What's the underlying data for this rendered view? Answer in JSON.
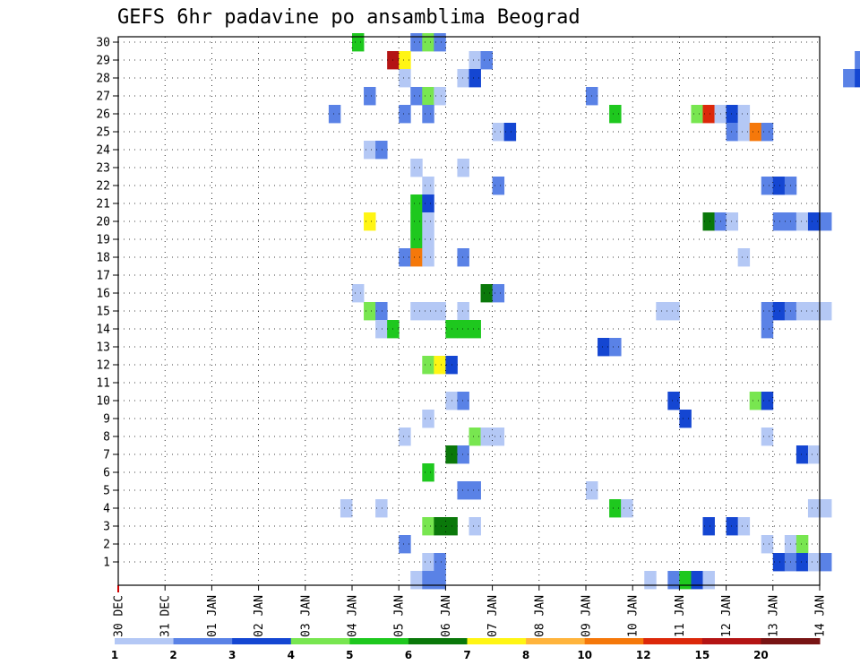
{
  "chart_data": {
    "type": "heatmap",
    "title": "GEFS 6hr padavine po ansamblima Beograd",
    "y_ticks": [
      "1",
      "2",
      "3",
      "4",
      "5",
      "6",
      "7",
      "8",
      "9",
      "10",
      "11",
      "12",
      "13",
      "14",
      "15",
      "16",
      "17",
      "18",
      "19",
      "20",
      "21",
      "22",
      "23",
      "24",
      "25",
      "26",
      "27",
      "28",
      "29",
      "30"
    ],
    "x_ticks": [
      "30 DEC",
      "31 DEC",
      "01 JAN",
      "02 JAN",
      "03 JAN",
      "04 JAN",
      "05 JAN",
      "06 JAN",
      "07 JAN",
      "08 JAN",
      "09 JAN",
      "10 JAN",
      "11 JAN",
      "12 JAN",
      "13 JAN",
      "14 JAN"
    ],
    "ylim": [
      0,
      30
    ],
    "grid": true,
    "colorbar_labels": [
      "1",
      "2",
      "3",
      "4",
      "5",
      "6",
      "7",
      "8",
      "10",
      "12",
      "15",
      "20"
    ],
    "colorbar_colors": [
      "#b4c8f5",
      "#5a82e6",
      "#1446d2",
      "#78e650",
      "#1ec81e",
      "#0a780a",
      "#fff514",
      "#ffb43c",
      "#f5780a",
      "#dc280a",
      "#b41414",
      "#781414"
    ],
    "cells": [
      {
        "member": 30,
        "x": 5.0,
        "level": 5
      },
      {
        "member": 30,
        "x": 6.25,
        "level": 2
      },
      {
        "member": 30,
        "x": 6.5,
        "level": 4
      },
      {
        "member": 30,
        "x": 6.75,
        "level": 2
      },
      {
        "member": 29,
        "x": 5.75,
        "level": 11
      },
      {
        "member": 29,
        "x": 6.0,
        "level": 7
      },
      {
        "member": 29,
        "x": 7.5,
        "level": 1
      },
      {
        "member": 29,
        "x": 7.75,
        "level": 2
      },
      {
        "member": 29,
        "x": 15.75,
        "level": 2
      },
      {
        "member": 28,
        "x": 6.0,
        "level": 1
      },
      {
        "member": 28,
        "x": 7.25,
        "level": 1
      },
      {
        "member": 28,
        "x": 7.5,
        "level": 3
      },
      {
        "member": 28,
        "x": 15.5,
        "level": 2
      },
      {
        "member": 28,
        "x": 15.75,
        "level": 3
      },
      {
        "member": 27,
        "x": 5.25,
        "level": 2
      },
      {
        "member": 27,
        "x": 6.25,
        "level": 2
      },
      {
        "member": 27,
        "x": 6.5,
        "level": 4
      },
      {
        "member": 27,
        "x": 6.75,
        "level": 1
      },
      {
        "member": 27,
        "x": 10.0,
        "level": 2
      },
      {
        "member": 26,
        "x": 4.5,
        "level": 2
      },
      {
        "member": 26,
        "x": 6.0,
        "level": 2
      },
      {
        "member": 26,
        "x": 6.5,
        "level": 2
      },
      {
        "member": 26,
        "x": 10.5,
        "level": 5
      },
      {
        "member": 26,
        "x": 12.25,
        "level": 4
      },
      {
        "member": 26,
        "x": 12.5,
        "level": 10
      },
      {
        "member": 26,
        "x": 12.75,
        "level": 1
      },
      {
        "member": 26,
        "x": 13.0,
        "level": 3
      },
      {
        "member": 26,
        "x": 13.25,
        "level": 1
      },
      {
        "member": 25,
        "x": 8.0,
        "level": 1
      },
      {
        "member": 25,
        "x": 8.25,
        "level": 3
      },
      {
        "member": 25,
        "x": 13.0,
        "level": 2
      },
      {
        "member": 25,
        "x": 13.25,
        "level": 1
      },
      {
        "member": 25,
        "x": 13.5,
        "level": 9
      },
      {
        "member": 25,
        "x": 13.75,
        "level": 2
      },
      {
        "member": 24,
        "x": 5.25,
        "level": 1
      },
      {
        "member": 24,
        "x": 5.5,
        "level": 2
      },
      {
        "member": 23,
        "x": 6.25,
        "level": 1
      },
      {
        "member": 23,
        "x": 7.25,
        "level": 1
      },
      {
        "member": 22,
        "x": 6.5,
        "level": 1
      },
      {
        "member": 22,
        "x": 8.0,
        "level": 2
      },
      {
        "member": 22,
        "x": 13.75,
        "level": 2
      },
      {
        "member": 22,
        "x": 14.0,
        "level": 3
      },
      {
        "member": 22,
        "x": 14.25,
        "level": 2
      },
      {
        "member": 21,
        "x": 6.25,
        "level": 5
      },
      {
        "member": 21,
        "x": 6.5,
        "level": 3
      },
      {
        "member": 20,
        "x": 5.25,
        "level": 7
      },
      {
        "member": 20,
        "x": 6.25,
        "level": 5
      },
      {
        "member": 20,
        "x": 6.5,
        "level": 1
      },
      {
        "member": 20,
        "x": 12.5,
        "level": 6
      },
      {
        "member": 20,
        "x": 12.75,
        "level": 2
      },
      {
        "member": 20,
        "x": 13.0,
        "level": 1
      },
      {
        "member": 20,
        "x": 14.0,
        "level": 2
      },
      {
        "member": 20,
        "x": 14.25,
        "level": 2
      },
      {
        "member": 20,
        "x": 14.5,
        "level": 1
      },
      {
        "member": 20,
        "x": 14.75,
        "level": 3
      },
      {
        "member": 20,
        "x": 15.0,
        "level": 2
      },
      {
        "member": 19,
        "x": 6.25,
        "level": 5
      },
      {
        "member": 19,
        "x": 6.5,
        "level": 1
      },
      {
        "member": 18,
        "x": 6.0,
        "level": 2
      },
      {
        "member": 18,
        "x": 6.25,
        "level": 9
      },
      {
        "member": 18,
        "x": 6.5,
        "level": 1
      },
      {
        "member": 18,
        "x": 7.25,
        "level": 2
      },
      {
        "member": 18,
        "x": 13.25,
        "level": 1
      },
      {
        "member": 16,
        "x": 5.0,
        "level": 1
      },
      {
        "member": 16,
        "x": 7.75,
        "level": 6
      },
      {
        "member": 16,
        "x": 8.0,
        "level": 2
      },
      {
        "member": 15,
        "x": 5.25,
        "level": 4
      },
      {
        "member": 15,
        "x": 5.5,
        "level": 2
      },
      {
        "member": 15,
        "x": 6.25,
        "level": 1
      },
      {
        "member": 15,
        "x": 6.5,
        "level": 1
      },
      {
        "member": 15,
        "x": 6.75,
        "level": 1
      },
      {
        "member": 15,
        "x": 7.25,
        "level": 1
      },
      {
        "member": 15,
        "x": 11.5,
        "level": 1
      },
      {
        "member": 15,
        "x": 11.75,
        "level": 1
      },
      {
        "member": 15,
        "x": 13.75,
        "level": 2
      },
      {
        "member": 15,
        "x": 14.0,
        "level": 3
      },
      {
        "member": 15,
        "x": 14.25,
        "level": 2
      },
      {
        "member": 15,
        "x": 14.5,
        "level": 1
      },
      {
        "member": 15,
        "x": 14.75,
        "level": 1
      },
      {
        "member": 15,
        "x": 15.0,
        "level": 1
      },
      {
        "member": 14,
        "x": 5.5,
        "level": 1
      },
      {
        "member": 14,
        "x": 5.75,
        "level": 5
      },
      {
        "member": 14,
        "x": 7.0,
        "level": 5
      },
      {
        "member": 14,
        "x": 7.25,
        "level": 5
      },
      {
        "member": 14,
        "x": 7.5,
        "level": 5
      },
      {
        "member": 14,
        "x": 13.75,
        "level": 2
      },
      {
        "member": 13,
        "x": 10.25,
        "level": 3
      },
      {
        "member": 13,
        "x": 10.5,
        "level": 2
      },
      {
        "member": 12,
        "x": 6.5,
        "level": 4
      },
      {
        "member": 12,
        "x": 6.75,
        "level": 7
      },
      {
        "member": 12,
        "x": 7.0,
        "level": 3
      },
      {
        "member": 10,
        "x": 7.0,
        "level": 1
      },
      {
        "member": 10,
        "x": 7.25,
        "level": 2
      },
      {
        "member": 10,
        "x": 11.75,
        "level": 3
      },
      {
        "member": 10,
        "x": 13.5,
        "level": 4
      },
      {
        "member": 10,
        "x": 13.75,
        "level": 3
      },
      {
        "member": 9,
        "x": 6.5,
        "level": 1
      },
      {
        "member": 9,
        "x": 12.0,
        "level": 3
      },
      {
        "member": 8,
        "x": 6.0,
        "level": 1
      },
      {
        "member": 8,
        "x": 7.5,
        "level": 4
      },
      {
        "member": 8,
        "x": 7.75,
        "level": 1
      },
      {
        "member": 8,
        "x": 8.0,
        "level": 1
      },
      {
        "member": 8,
        "x": 13.75,
        "level": 1
      },
      {
        "member": 7,
        "x": 7.0,
        "level": 6
      },
      {
        "member": 7,
        "x": 7.25,
        "level": 2
      },
      {
        "member": 7,
        "x": 14.5,
        "level": 3
      },
      {
        "member": 7,
        "x": 14.75,
        "level": 1
      },
      {
        "member": 6,
        "x": 6.5,
        "level": 5
      },
      {
        "member": 5,
        "x": 7.25,
        "level": 2
      },
      {
        "member": 5,
        "x": 7.5,
        "level": 2
      },
      {
        "member": 5,
        "x": 10.0,
        "level": 1
      },
      {
        "member": 4,
        "x": 4.75,
        "level": 1
      },
      {
        "member": 4,
        "x": 5.5,
        "level": 1
      },
      {
        "member": 4,
        "x": 10.5,
        "level": 5
      },
      {
        "member": 4,
        "x": 10.75,
        "level": 1
      },
      {
        "member": 4,
        "x": 14.75,
        "level": 1
      },
      {
        "member": 4,
        "x": 15.0,
        "level": 1
      },
      {
        "member": 3,
        "x": 6.5,
        "level": 4
      },
      {
        "member": 3,
        "x": 6.75,
        "level": 6
      },
      {
        "member": 3,
        "x": 7.0,
        "level": 6
      },
      {
        "member": 3,
        "x": 7.5,
        "level": 1
      },
      {
        "member": 3,
        "x": 12.5,
        "level": 3
      },
      {
        "member": 3,
        "x": 13.0,
        "level": 3
      },
      {
        "member": 3,
        "x": 13.25,
        "level": 1
      },
      {
        "member": 2,
        "x": 6.0,
        "level": 2
      },
      {
        "member": 2,
        "x": 13.75,
        "level": 1
      },
      {
        "member": 2,
        "x": 14.25,
        "level": 1
      },
      {
        "member": 2,
        "x": 14.5,
        "level": 4
      },
      {
        "member": 1,
        "x": 6.5,
        "level": 1
      },
      {
        "member": 1,
        "x": 6.75,
        "level": 2
      },
      {
        "member": 1,
        "x": 14.0,
        "level": 3
      },
      {
        "member": 1,
        "x": 14.25,
        "level": 2
      },
      {
        "member": 1,
        "x": 14.5,
        "level": 3
      },
      {
        "member": 1,
        "x": 14.75,
        "level": 1
      },
      {
        "member": 1,
        "x": 15.0,
        "level": 2
      },
      {
        "member": 0,
        "x": 6.25,
        "level": 1
      },
      {
        "member": 0,
        "x": 6.5,
        "level": 2
      },
      {
        "member": 0,
        "x": 6.75,
        "level": 2
      },
      {
        "member": 0,
        "x": 11.25,
        "level": 1
      },
      {
        "member": 0,
        "x": 11.75,
        "level": 2
      },
      {
        "member": 0,
        "x": 12.0,
        "level": 5
      },
      {
        "member": 0,
        "x": 12.25,
        "level": 3
      },
      {
        "member": 0,
        "x": 12.5,
        "level": 1
      }
    ]
  }
}
